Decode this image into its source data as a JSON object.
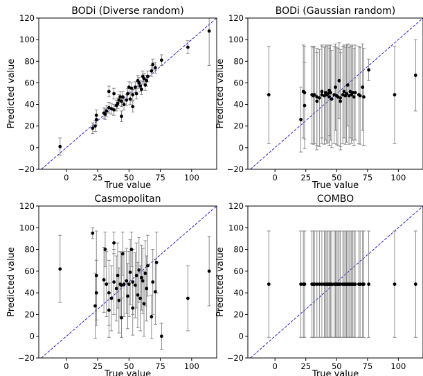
{
  "chart_data": [
    {
      "type": "scatter",
      "title": "BODi (Diverse random)",
      "xlabel": "True value",
      "ylabel": "Predicted value",
      "xlim": [
        -22,
        120
      ],
      "ylim": [
        -20,
        120
      ],
      "xticks": [
        0,
        25,
        50,
        75,
        100
      ],
      "yticks": [
        -20,
        0,
        20,
        40,
        60,
        80,
        100,
        120
      ],
      "diagonal": {
        "style": "dashed",
        "color": "#1f1fd0"
      },
      "marker_color": "#000000",
      "errorbar_color": "#808080",
      "points": [
        {
          "x": -5,
          "y": 1,
          "err": 8
        },
        {
          "x": 21,
          "y": 18,
          "err": 5
        },
        {
          "x": 23,
          "y": 20,
          "err": 5
        },
        {
          "x": 24,
          "y": 26,
          "err": 5
        },
        {
          "x": 24,
          "y": 30,
          "err": 5
        },
        {
          "x": 30,
          "y": 32,
          "err": 5
        },
        {
          "x": 31,
          "y": 31,
          "err": 5
        },
        {
          "x": 32,
          "y": 34,
          "err": 5
        },
        {
          "x": 34,
          "y": 37,
          "err": 5
        },
        {
          "x": 34,
          "y": 52,
          "err": 5
        },
        {
          "x": 36,
          "y": 36,
          "err": 5
        },
        {
          "x": 38,
          "y": 35,
          "err": 5
        },
        {
          "x": 38,
          "y": 50,
          "err": 5
        },
        {
          "x": 40,
          "y": 39,
          "err": 5
        },
        {
          "x": 41,
          "y": 41,
          "err": 5
        },
        {
          "x": 42,
          "y": 44,
          "err": 5
        },
        {
          "x": 43,
          "y": 47,
          "err": 5
        },
        {
          "x": 44,
          "y": 43,
          "err": 5
        },
        {
          "x": 44,
          "y": 29,
          "err": 5
        },
        {
          "x": 45,
          "y": 47,
          "err": 5
        },
        {
          "x": 46,
          "y": 40,
          "err": 5
        },
        {
          "x": 48,
          "y": 44,
          "err": 5
        },
        {
          "x": 49,
          "y": 50,
          "err": 5
        },
        {
          "x": 50,
          "y": 56,
          "err": 5
        },
        {
          "x": 51,
          "y": 45,
          "err": 5
        },
        {
          "x": 52,
          "y": 55,
          "err": 5
        },
        {
          "x": 53,
          "y": 49,
          "err": 5
        },
        {
          "x": 53,
          "y": 38,
          "err": 5
        },
        {
          "x": 55,
          "y": 56,
          "err": 5
        },
        {
          "x": 56,
          "y": 50,
          "err": 5
        },
        {
          "x": 57,
          "y": 62,
          "err": 5
        },
        {
          "x": 58,
          "y": 60,
          "err": 5
        },
        {
          "x": 59,
          "y": 57,
          "err": 5
        },
        {
          "x": 60,
          "y": 54,
          "err": 5
        },
        {
          "x": 61,
          "y": 66,
          "err": 5
        },
        {
          "x": 62,
          "y": 64,
          "err": 5
        },
        {
          "x": 63,
          "y": 58,
          "err": 5
        },
        {
          "x": 64,
          "y": 62,
          "err": 5
        },
        {
          "x": 65,
          "y": 66,
          "err": 5
        },
        {
          "x": 68,
          "y": 71,
          "err": 5
        },
        {
          "x": 69,
          "y": 77,
          "err": 5
        },
        {
          "x": 71,
          "y": 74,
          "err": 5
        },
        {
          "x": 76,
          "y": 81,
          "err": 5
        },
        {
          "x": 97,
          "y": 93,
          "err": 6
        },
        {
          "x": 114,
          "y": 108,
          "err": 32
        }
      ]
    },
    {
      "type": "scatter",
      "title": "BODi (Gaussian random)",
      "xlabel": "True value",
      "ylabel": "Predicted value",
      "xlim": [
        -22,
        120
      ],
      "ylim": [
        -20,
        120
      ],
      "xticks": [
        0,
        25,
        50,
        75,
        100
      ],
      "yticks": [
        -20,
        0,
        20,
        40,
        60,
        80,
        100,
        120
      ],
      "diagonal": {
        "style": "dashed",
        "color": "#1f1fd0"
      },
      "marker_color": "#000000",
      "errorbar_color": "#808080",
      "points": [
        {
          "x": -5,
          "y": 49,
          "err": 45
        },
        {
          "x": 21,
          "y": 26,
          "err": 30
        },
        {
          "x": 23,
          "y": 52,
          "err": 43
        },
        {
          "x": 24,
          "y": 51,
          "err": 43
        },
        {
          "x": 24,
          "y": 39,
          "err": 40
        },
        {
          "x": 30,
          "y": 49,
          "err": 45
        },
        {
          "x": 31,
          "y": 48,
          "err": 45
        },
        {
          "x": 32,
          "y": 49,
          "err": 45
        },
        {
          "x": 34,
          "y": 43,
          "err": 45
        },
        {
          "x": 34,
          "y": 47,
          "err": 45
        },
        {
          "x": 36,
          "y": 46,
          "err": 45
        },
        {
          "x": 38,
          "y": 49,
          "err": 45
        },
        {
          "x": 38,
          "y": 52,
          "err": 43
        },
        {
          "x": 40,
          "y": 48,
          "err": 45
        },
        {
          "x": 41,
          "y": 51,
          "err": 44
        },
        {
          "x": 42,
          "y": 49,
          "err": 45
        },
        {
          "x": 43,
          "y": 50,
          "err": 45
        },
        {
          "x": 44,
          "y": 47,
          "err": 45
        },
        {
          "x": 44,
          "y": 53,
          "err": 42
        },
        {
          "x": 45,
          "y": 51,
          "err": 44
        },
        {
          "x": 46,
          "y": 45,
          "err": 45
        },
        {
          "x": 48,
          "y": 49,
          "err": 45
        },
        {
          "x": 49,
          "y": 56,
          "err": 40
        },
        {
          "x": 50,
          "y": 48,
          "err": 45
        },
        {
          "x": 51,
          "y": 47,
          "err": 45
        },
        {
          "x": 52,
          "y": 62,
          "err": 35
        },
        {
          "x": 53,
          "y": 46,
          "err": 45
        },
        {
          "x": 53,
          "y": 43,
          "err": 45
        },
        {
          "x": 55,
          "y": 49,
          "err": 45
        },
        {
          "x": 56,
          "y": 52,
          "err": 43
        },
        {
          "x": 57,
          "y": 48,
          "err": 45
        },
        {
          "x": 58,
          "y": 50,
          "err": 45
        },
        {
          "x": 59,
          "y": 58,
          "err": 38
        },
        {
          "x": 60,
          "y": 48,
          "err": 45
        },
        {
          "x": 61,
          "y": 52,
          "err": 43
        },
        {
          "x": 62,
          "y": 49,
          "err": 45
        },
        {
          "x": 63,
          "y": 51,
          "err": 44
        },
        {
          "x": 64,
          "y": 47,
          "err": 45
        },
        {
          "x": 65,
          "y": 51,
          "err": 44
        },
        {
          "x": 68,
          "y": 49,
          "err": 45
        },
        {
          "x": 69,
          "y": 48,
          "err": 45
        },
        {
          "x": 71,
          "y": 56,
          "err": 40
        },
        {
          "x": 72,
          "y": 47,
          "err": 45
        },
        {
          "x": 76,
          "y": 72,
          "err": 10
        },
        {
          "x": 97,
          "y": 49,
          "err": 45
        },
        {
          "x": 114,
          "y": 67,
          "err": 33
        }
      ]
    },
    {
      "type": "scatter",
      "title": "Casmopolitan",
      "xlabel": "True value",
      "ylabel": "Predicted value",
      "xlim": [
        -22,
        120
      ],
      "ylim": [
        -20,
        120
      ],
      "xticks": [
        0,
        25,
        50,
        75,
        100
      ],
      "yticks": [
        -20,
        0,
        20,
        40,
        60,
        80,
        100,
        120
      ],
      "diagonal": {
        "style": "dashed",
        "color": "#1f1fd0"
      },
      "marker_color": "#000000",
      "errorbar_color": "#808080",
      "points": [
        {
          "x": -5,
          "y": 62,
          "err": 31
        },
        {
          "x": 21,
          "y": 95,
          "err": 5
        },
        {
          "x": 23,
          "y": 28,
          "err": 30
        },
        {
          "x": 24,
          "y": 56,
          "err": 41
        },
        {
          "x": 24,
          "y": 40,
          "err": 30
        },
        {
          "x": 30,
          "y": 52,
          "err": 30
        },
        {
          "x": 31,
          "y": 80,
          "err": 16
        },
        {
          "x": 32,
          "y": 48,
          "err": 30
        },
        {
          "x": 34,
          "y": 40,
          "err": 30
        },
        {
          "x": 34,
          "y": 24,
          "err": 25
        },
        {
          "x": 36,
          "y": 35,
          "err": 30
        },
        {
          "x": 38,
          "y": 50,
          "err": 30
        },
        {
          "x": 38,
          "y": 86,
          "err": 10
        },
        {
          "x": 40,
          "y": 44,
          "err": 30
        },
        {
          "x": 41,
          "y": 56,
          "err": 30
        },
        {
          "x": 42,
          "y": 33,
          "err": 30
        },
        {
          "x": 43,
          "y": 48,
          "err": 30
        },
        {
          "x": 44,
          "y": 47,
          "err": 30
        },
        {
          "x": 44,
          "y": 17,
          "err": 18
        },
        {
          "x": 45,
          "y": 76,
          "err": 20
        },
        {
          "x": 46,
          "y": 48,
          "err": 30
        },
        {
          "x": 48,
          "y": 51,
          "err": 30
        },
        {
          "x": 49,
          "y": 37,
          "err": 30
        },
        {
          "x": 50,
          "y": 48,
          "err": 30
        },
        {
          "x": 51,
          "y": 59,
          "err": 30
        },
        {
          "x": 52,
          "y": 80,
          "err": 16
        },
        {
          "x": 53,
          "y": 50,
          "err": 30
        },
        {
          "x": 53,
          "y": 26,
          "err": 25
        },
        {
          "x": 55,
          "y": 47,
          "err": 30
        },
        {
          "x": 56,
          "y": 56,
          "err": 30
        },
        {
          "x": 57,
          "y": 38,
          "err": 30
        },
        {
          "x": 58,
          "y": 61,
          "err": 30
        },
        {
          "x": 59,
          "y": 35,
          "err": 30
        },
        {
          "x": 60,
          "y": 54,
          "err": 30
        },
        {
          "x": 61,
          "y": 51,
          "err": 30
        },
        {
          "x": 62,
          "y": 30,
          "err": 30
        },
        {
          "x": 63,
          "y": 58,
          "err": 30
        },
        {
          "x": 64,
          "y": 44,
          "err": 30
        },
        {
          "x": 65,
          "y": 65,
          "err": 28
        },
        {
          "x": 68,
          "y": 18,
          "err": 20
        },
        {
          "x": 69,
          "y": 50,
          "err": 30
        },
        {
          "x": 71,
          "y": 41,
          "err": 30
        },
        {
          "x": 72,
          "y": 68,
          "err": 28
        },
        {
          "x": 76,
          "y": 0,
          "err": 12
        },
        {
          "x": 97,
          "y": 35,
          "err": 30
        },
        {
          "x": 114,
          "y": 60,
          "err": 32
        }
      ]
    },
    {
      "type": "scatter",
      "title": "COMBO",
      "xlabel": "True value",
      "ylabel": "Predicted value",
      "xlim": [
        -22,
        120
      ],
      "ylim": [
        -20,
        120
      ],
      "xticks": [
        0,
        25,
        50,
        75,
        100
      ],
      "yticks": [
        -20,
        0,
        20,
        40,
        60,
        80,
        100,
        120
      ],
      "diagonal": {
        "style": "dashed",
        "color": "#1f1fd0"
      },
      "marker_color": "#000000",
      "errorbar_color": "#808080",
      "points": [
        {
          "x": -5,
          "y": 48,
          "err": 49
        },
        {
          "x": 21,
          "y": 48,
          "err": 49
        },
        {
          "x": 23,
          "y": 48,
          "err": 49
        },
        {
          "x": 24,
          "y": 48,
          "err": 49
        },
        {
          "x": 30,
          "y": 48,
          "err": 49
        },
        {
          "x": 31,
          "y": 48,
          "err": 49
        },
        {
          "x": 32,
          "y": 48,
          "err": 49
        },
        {
          "x": 34,
          "y": 48,
          "err": 49
        },
        {
          "x": 36,
          "y": 48,
          "err": 49
        },
        {
          "x": 38,
          "y": 48,
          "err": 49
        },
        {
          "x": 40,
          "y": 48,
          "err": 49
        },
        {
          "x": 41,
          "y": 48,
          "err": 49
        },
        {
          "x": 42,
          "y": 48,
          "err": 49
        },
        {
          "x": 43,
          "y": 48,
          "err": 49
        },
        {
          "x": 44,
          "y": 48,
          "err": 49
        },
        {
          "x": 45,
          "y": 48,
          "err": 49
        },
        {
          "x": 46,
          "y": 48,
          "err": 49
        },
        {
          "x": 48,
          "y": 48,
          "err": 49
        },
        {
          "x": 49,
          "y": 48,
          "err": 49
        },
        {
          "x": 50,
          "y": 48,
          "err": 49
        },
        {
          "x": 51,
          "y": 48,
          "err": 49
        },
        {
          "x": 52,
          "y": 48,
          "err": 49
        },
        {
          "x": 53,
          "y": 48,
          "err": 49
        },
        {
          "x": 55,
          "y": 48,
          "err": 49
        },
        {
          "x": 56,
          "y": 48,
          "err": 49
        },
        {
          "x": 57,
          "y": 48,
          "err": 49
        },
        {
          "x": 58,
          "y": 48,
          "err": 49
        },
        {
          "x": 59,
          "y": 48,
          "err": 49
        },
        {
          "x": 60,
          "y": 48,
          "err": 49
        },
        {
          "x": 61,
          "y": 48,
          "err": 49
        },
        {
          "x": 62,
          "y": 48,
          "err": 49
        },
        {
          "x": 63,
          "y": 48,
          "err": 49
        },
        {
          "x": 64,
          "y": 48,
          "err": 49
        },
        {
          "x": 65,
          "y": 48,
          "err": 49
        },
        {
          "x": 68,
          "y": 48,
          "err": 49
        },
        {
          "x": 69,
          "y": 48,
          "err": 49
        },
        {
          "x": 71,
          "y": 48,
          "err": 49
        },
        {
          "x": 72,
          "y": 48,
          "err": 49
        },
        {
          "x": 76,
          "y": 48,
          "err": 49
        },
        {
          "x": 97,
          "y": 48,
          "err": 49
        },
        {
          "x": 114,
          "y": 48,
          "err": 49
        }
      ]
    }
  ]
}
